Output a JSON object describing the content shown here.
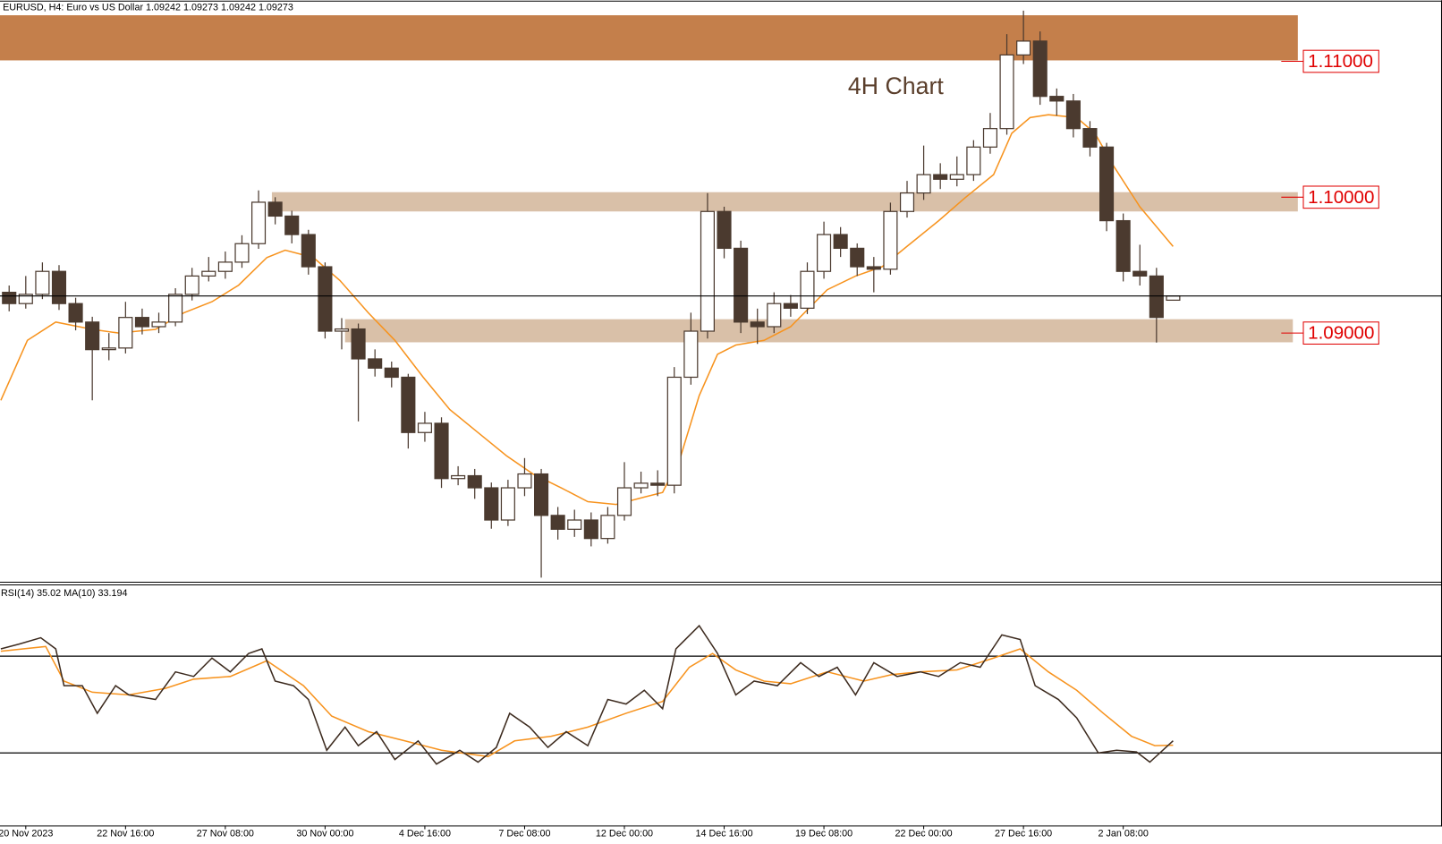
{
  "chart_data": {
    "type": "candlestick",
    "header": "EURUSD, H4:  Euro vs US Dollar  1.09242 1.09273 1.09242 1.09273",
    "annotation": "4H Chart",
    "xlim": [
      -0.55,
      86.17
    ],
    "xticks": [
      {
        "value": 1,
        "label": "20 Nov 2023"
      },
      {
        "value": 7,
        "label": "22 Nov 16:00"
      },
      {
        "value": 13,
        "label": "27 Nov 08:00"
      },
      {
        "value": 19,
        "label": "30 Nov 00:00"
      },
      {
        "value": 25,
        "label": "4 Dec 16:00"
      },
      {
        "value": 31,
        "label": "7 Dec 08:00"
      },
      {
        "value": 37,
        "label": "12 Dec 00:00"
      },
      {
        "value": 43,
        "label": "14 Dec 16:00"
      },
      {
        "value": 49,
        "label": "19 Dec 08:00"
      },
      {
        "value": 55,
        "label": "22 Dec 00:00"
      },
      {
        "value": 61,
        "label": "27 Dec 16:00"
      },
      {
        "value": 67,
        "label": "2 Jan 08:00"
      }
    ],
    "ylim": [
      1.0717,
      1.1145
    ],
    "up_color": "#ffffff",
    "down_color": "#4b3a2f",
    "x": [
      0,
      1,
      2,
      3,
      4,
      5,
      6,
      7,
      8,
      9,
      10,
      11,
      12,
      13,
      14,
      15,
      16,
      17,
      18,
      19,
      20,
      21,
      22,
      23,
      24,
      25,
      26,
      27,
      28,
      29,
      30,
      31,
      32,
      33,
      34,
      35,
      36,
      37,
      38,
      39,
      40,
      41,
      42,
      43,
      44,
      45,
      46,
      47,
      48,
      49,
      50,
      51,
      52,
      53,
      54,
      55,
      56,
      57,
      58,
      59,
      60,
      61,
      62,
      63,
      64,
      65,
      66,
      67,
      68,
      69,
      70
    ],
    "ohlc": [
      [
        1.093,
        1.0935,
        1.0916,
        1.09217
      ],
      [
        1.09217,
        1.0942,
        1.0918,
        1.09285
      ],
      [
        1.09285,
        1.0952,
        1.0925,
        1.09454
      ],
      [
        1.09454,
        1.095,
        1.0917,
        1.09217
      ],
      [
        1.09217,
        1.0926,
        1.0902,
        1.09081
      ],
      [
        1.09081,
        1.0912,
        1.08505,
        1.08878
      ],
      [
        1.08878,
        1.09,
        1.088,
        1.0889
      ],
      [
        1.0889,
        1.0923,
        1.0885,
        1.09115
      ],
      [
        1.09115,
        1.0918,
        1.0899,
        1.09047
      ],
      [
        1.09047,
        1.0915,
        1.09,
        1.09081
      ],
      [
        1.09081,
        1.0933,
        1.0905,
        1.09285
      ],
      [
        1.09285,
        1.0948,
        1.0924,
        1.0942
      ],
      [
        1.0942,
        1.0956,
        1.0938,
        1.09454
      ],
      [
        1.09454,
        1.096,
        1.094,
        1.09522
      ],
      [
        1.09522,
        1.0972,
        1.0948,
        1.09658
      ],
      [
        1.09658,
        1.1005,
        1.0962,
        1.09963
      ],
      [
        1.09963,
        1.1,
        1.098,
        1.09861
      ],
      [
        1.09861,
        1.099,
        1.0966,
        1.09725
      ],
      [
        1.09725,
        1.0976,
        1.0943,
        1.09488
      ],
      [
        1.09488,
        1.0952,
        1.0896,
        1.09014
      ],
      [
        1.09014,
        1.0911,
        1.0888,
        1.0903
      ],
      [
        1.0903,
        1.0907,
        1.0835,
        1.0881
      ],
      [
        1.0881,
        1.0888,
        1.0868,
        1.08742
      ],
      [
        1.08742,
        1.0879,
        1.086,
        1.08675
      ],
      [
        1.08675,
        1.087,
        1.0815,
        1.08268
      ],
      [
        1.08268,
        1.0842,
        1.082,
        1.08336
      ],
      [
        1.08336,
        1.0838,
        1.0786,
        1.07929
      ],
      [
        1.07929,
        1.0802,
        1.0788,
        1.0795
      ],
      [
        1.0795,
        1.08,
        1.0778,
        1.07861
      ],
      [
        1.07861,
        1.079,
        1.0756,
        1.07624
      ],
      [
        1.07624,
        1.0792,
        1.0758,
        1.07861
      ],
      [
        1.07861,
        1.0808,
        1.078,
        1.07963
      ],
      [
        1.07963,
        1.08,
        1.072,
        1.07658
      ],
      [
        1.07658,
        1.0772,
        1.0748,
        1.07556
      ],
      [
        1.07556,
        1.077,
        1.075,
        1.07624
      ],
      [
        1.07624,
        1.0768,
        1.0743,
        1.07488
      ],
      [
        1.07488,
        1.0772,
        1.0745,
        1.07658
      ],
      [
        1.07658,
        1.0805,
        1.0762,
        1.07861
      ],
      [
        1.07861,
        1.0798,
        1.0782,
        1.07895
      ],
      [
        1.07895,
        1.0799,
        1.078,
        1.0788
      ],
      [
        1.0788,
        1.0875,
        1.0782,
        1.08675
      ],
      [
        1.08675,
        1.0915,
        1.0862,
        1.09014
      ],
      [
        1.09014,
        1.1003,
        1.0896,
        1.09895
      ],
      [
        1.09895,
        1.0993,
        1.0955,
        1.09624
      ],
      [
        1.09624,
        1.0968,
        1.09,
        1.09081
      ],
      [
        1.09081,
        1.0918,
        1.0892,
        1.09047
      ],
      [
        1.09047,
        1.093,
        1.09,
        1.09217
      ],
      [
        1.09217,
        1.0928,
        1.0912,
        1.09183
      ],
      [
        1.09183,
        1.0952,
        1.0914,
        1.09454
      ],
      [
        1.09454,
        1.0982,
        1.094,
        1.09725
      ],
      [
        1.09725,
        1.0978,
        1.0956,
        1.09624
      ],
      [
        1.09624,
        1.0966,
        1.0942,
        1.09488
      ],
      [
        1.09488,
        1.0956,
        1.093,
        1.0947
      ],
      [
        1.0947,
        1.0996,
        1.0943,
        1.09895
      ],
      [
        1.09895,
        1.1012,
        1.0985,
        1.10031
      ],
      [
        1.10031,
        1.1038,
        1.0998,
        1.10166
      ],
      [
        1.10166,
        1.1025,
        1.1006,
        1.10132
      ],
      [
        1.10132,
        1.103,
        1.1008,
        1.10166
      ],
      [
        1.10166,
        1.1042,
        1.1012,
        1.10369
      ],
      [
        1.10369,
        1.1062,
        1.1032,
        1.10505
      ],
      [
        1.10505,
        1.112,
        1.1046,
        1.11047
      ],
      [
        1.11047,
        1.11373,
        1.1098,
        1.11149
      ],
      [
        1.11149,
        1.1122,
        1.1068,
        1.10742
      ],
      [
        1.10742,
        1.108,
        1.106,
        1.10708
      ],
      [
        1.10708,
        1.1076,
        1.1044,
        1.10505
      ],
      [
        1.10505,
        1.1056,
        1.103,
        1.10369
      ],
      [
        1.10369,
        1.104,
        1.0975,
        1.09827
      ],
      [
        1.09827,
        1.0988,
        1.0938,
        1.09454
      ],
      [
        1.09454,
        1.0965,
        1.0935,
        1.0942
      ],
      [
        1.0942,
        1.0948,
        1.0893,
        1.09115
      ],
      [
        1.09242,
        1.09273,
        1.09242,
        1.09273
      ]
    ],
    "ma": {
      "color": "#f7931e",
      "x": [
        -0.5,
        1.1,
        2.8,
        5.0,
        6.6,
        8.8,
        10.5,
        12.2,
        13.8,
        15.5,
        16.6,
        18.3,
        19.9,
        21.6,
        23.2,
        24.9,
        26.5,
        28.2,
        29.9,
        31.5,
        33.2,
        34.8,
        36.5,
        38.2,
        39.3,
        40.4,
        41.5,
        42.6,
        43.7,
        45.4,
        47.0,
        48.1,
        49.2,
        50.9,
        52.5,
        54.2,
        55.9,
        57.5,
        59.2,
        60.3,
        61.4,
        62.5,
        64.2,
        65.3,
        66.4,
        68.0,
        70.0
      ],
      "values": [
        1.08505,
        1.08946,
        1.09081,
        1.09027,
        1.09,
        1.09027,
        1.09149,
        1.09231,
        1.09353,
        1.09556,
        1.0961,
        1.09556,
        1.09386,
        1.09149,
        1.08946,
        1.08675,
        1.08437,
        1.08268,
        1.08098,
        1.07963,
        1.07861,
        1.07759,
        1.07739,
        1.07793,
        1.07827,
        1.08098,
        1.08539,
        1.08844,
        1.08912,
        1.08946,
        1.09047,
        1.09183,
        1.09319,
        1.0942,
        1.09488,
        1.09658,
        1.09827,
        1.09997,
        1.10166,
        1.10471,
        1.10586,
        1.10607,
        1.10586,
        1.10471,
        1.10234,
        1.09929,
        1.09637
      ]
    },
    "zones": [
      {
        "from": 1.11007,
        "to": 1.11339,
        "x_start": -0.55,
        "x_end": 77.5,
        "color": "#c47f4b"
      },
      {
        "from": 1.09895,
        "to": 1.10037,
        "x_start": 15.8,
        "x_end": 77.5,
        "color": "#d9c0a8"
      },
      {
        "from": 1.08932,
        "to": 1.09102,
        "x_start": 20.2,
        "x_end": 77.2,
        "color": "#d9c0a8"
      }
    ],
    "levels": [
      {
        "value": 1.11,
        "label": "1.11000"
      },
      {
        "value": 1.1,
        "label": "1.10000"
      },
      {
        "value": 1.09,
        "label": "1.09000"
      }
    ],
    "level_color": "#e00000",
    "rsi": {
      "label": "RSI(14) 35.02 MA(10) 33.194",
      "ylim": [
        0,
        100
      ],
      "levels": [
        30,
        70
      ],
      "series": [
        {
          "color": "#3d2b1f",
          "x": [
            -0.5,
            0.6,
            1.9,
            2.8,
            3.3,
            4.4,
            5.3,
            6.4,
            7.2,
            8.8,
            10.0,
            11.1,
            12.2,
            13.3,
            14.4,
            15.2,
            16.0,
            17.1,
            18.0,
            19.1,
            20.2,
            21.0,
            22.1,
            23.2,
            24.6,
            25.7,
            27.1,
            28.2,
            29.3,
            30.1,
            31.3,
            32.4,
            33.5,
            34.8,
            36.0,
            37.1,
            38.2,
            39.3,
            40.1,
            41.5,
            42.6,
            43.7,
            44.8,
            46.2,
            47.6,
            48.7,
            49.8,
            50.9,
            52.0,
            53.4,
            54.8,
            55.9,
            57.2,
            58.4,
            59.7,
            60.8,
            61.7,
            63.1,
            64.2,
            65.5,
            66.6,
            67.8,
            68.6,
            70.0
          ],
          "values": [
            73.0,
            75.0,
            77.6,
            73.0,
            57.8,
            57.8,
            46.4,
            57.8,
            54.0,
            52.1,
            63.5,
            61.6,
            69.2,
            63.5,
            71.1,
            73.0,
            59.7,
            57.8,
            52.1,
            31.1,
            40.7,
            33.0,
            38.8,
            27.3,
            35.0,
            25.4,
            31.1,
            26.2,
            32.3,
            46.4,
            40.7,
            32.3,
            38.8,
            33.0,
            52.1,
            50.2,
            55.9,
            48.3,
            73.0,
            82.6,
            71.1,
            54.0,
            59.7,
            57.8,
            67.3,
            61.6,
            65.4,
            54.0,
            67.3,
            61.6,
            63.5,
            61.6,
            67.3,
            65.4,
            78.8,
            76.9,
            57.8,
            52.1,
            44.5,
            30.0,
            31.1,
            30.4,
            26.2,
            35.02
          ]
        },
        {
          "color": "#f7931e",
          "x": [
            -0.5,
            2.2,
            3.3,
            5.0,
            7.2,
            9.4,
            11.1,
            13.3,
            15.5,
            17.7,
            19.4,
            21.6,
            23.8,
            26.0,
            28.8,
            30.4,
            32.6,
            34.8,
            37.1,
            39.3,
            40.9,
            42.3,
            43.7,
            45.4,
            47.0,
            49.2,
            51.4,
            53.1,
            54.8,
            57.0,
            59.2,
            60.8,
            62.5,
            64.2,
            65.8,
            67.5,
            68.9,
            70.0
          ],
          "values": [
            72.0,
            74.0,
            59.7,
            55.1,
            54.0,
            56.7,
            60.5,
            61.6,
            68.1,
            57.8,
            45.2,
            38.8,
            35.0,
            31.1,
            28.5,
            35.0,
            36.9,
            40.7,
            46.4,
            51.3,
            65.4,
            71.1,
            64.3,
            59.7,
            58.6,
            63.5,
            59.7,
            62.4,
            63.5,
            64.3,
            69.2,
            73.0,
            63.5,
            55.9,
            46.4,
            36.9,
            33.0,
            33.194
          ]
        }
      ]
    }
  }
}
